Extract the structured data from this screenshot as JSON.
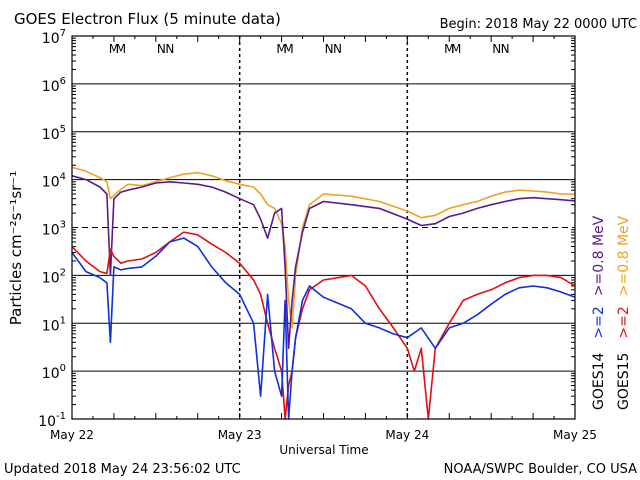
{
  "header": {
    "title": "GOES Electron Flux (5 minute data)",
    "begin": "Begin: 2018 May 22 0000 UTC"
  },
  "footer": {
    "updated": "Updated 2018 May 24 23:56:02 UTC",
    "credit": "NOAA/SWPC Boulder, CO USA"
  },
  "axes": {
    "xlabel": "Universal Time",
    "ylabel": "Particles cm⁻²s⁻¹sr⁻¹",
    "xticks": [
      "May 22",
      "May 23",
      "May 24",
      "May 25"
    ],
    "ytick_exponents": [
      "-1",
      "0",
      "1",
      "2",
      "3",
      "4",
      "5",
      "6",
      "7"
    ]
  },
  "markers": {
    "M": "M",
    "N": "N"
  },
  "legend": {
    "goes14": "GOES14",
    "goes15": "GOES15",
    "g14_2": ">=2",
    "g14_08": ">=0.8 MeV",
    "g15_2": ">=2",
    "g15_08": ">=0.8 MeV"
  },
  "colors": {
    "g14_08": "#5a1a8c",
    "g15_08": "#f0a21e",
    "g14_2": "#1030e0",
    "g15_2": "#e01010"
  },
  "chart_data": {
    "type": "line",
    "title": "GOES Electron Flux (5 minute data)",
    "xlabel": "Universal Time",
    "ylabel": "Particles cm-2 s-1 sr-1",
    "y_scale": "log",
    "ylim": [
      0.1,
      10000000
    ],
    "xlim": [
      "2018-05-22 00:00",
      "2018-05-25 00:00"
    ],
    "x_unit": "hours since 2018-05-22 00:00 UTC",
    "threshold_dashed": 1000,
    "legend_position": "right",
    "series": [
      {
        "name": "GOES15 >=0.8 MeV",
        "key": "g15_08",
        "x": [
          0,
          2,
          4,
          5,
          5.5,
          6.5,
          8,
          10,
          12,
          14,
          16,
          18,
          20,
          22,
          24,
          26,
          27,
          28,
          29,
          30,
          30.5,
          31,
          31.5,
          32,
          33,
          34,
          36,
          40,
          44,
          48,
          50,
          52,
          54,
          56,
          58,
          60,
          62,
          64,
          66,
          68,
          70,
          72
        ],
        "y": [
          18000,
          15000,
          11000,
          9000,
          4000,
          5500,
          8000,
          7500,
          9000,
          11000,
          13000,
          14000,
          12000,
          9500,
          8000,
          7000,
          5000,
          3000,
          2500,
          1200,
          400,
          30,
          8,
          100,
          1000,
          3000,
          5000,
          4500,
          3500,
          2200,
          1600,
          1800,
          2500,
          3000,
          3500,
          4500,
          5500,
          6000,
          5800,
          5500,
          5000,
          5000
        ]
      },
      {
        "name": "GOES14 >=0.8 MeV",
        "key": "g14_08",
        "x": [
          0,
          2,
          4,
          5,
          5.5,
          6,
          7,
          8,
          10,
          12,
          14,
          16,
          18,
          20,
          22,
          24,
          26,
          27,
          28,
          29,
          30,
          30.5,
          31,
          31.5,
          32,
          33,
          34,
          36,
          40,
          44,
          48,
          50,
          52,
          54,
          56,
          58,
          60,
          62,
          64,
          66,
          68,
          70,
          72
        ],
        "y": [
          12000,
          10000,
          7000,
          5000,
          100,
          4000,
          5500,
          6000,
          7000,
          8500,
          9000,
          8500,
          8000,
          7000,
          5500,
          4000,
          3000,
          1500,
          600,
          2000,
          2500,
          150,
          3,
          30,
          150,
          800,
          2500,
          3500,
          3000,
          2500,
          1500,
          1100,
          1200,
          1700,
          2000,
          2500,
          3000,
          3500,
          4000,
          4200,
          4000,
          3800,
          3600
        ]
      },
      {
        "name": "GOES15 >=2 MeV",
        "key": "g15_2",
        "x": [
          0,
          2,
          4,
          5,
          5.5,
          6,
          7,
          8,
          10,
          12,
          14,
          16,
          18,
          20,
          22,
          24,
          26,
          27,
          28,
          29,
          30,
          30.5,
          31,
          31.5,
          32,
          33,
          34,
          36,
          40,
          42,
          44,
          46,
          48,
          49,
          50,
          51,
          52,
          54,
          56,
          58,
          60,
          62,
          64,
          66,
          68,
          70,
          72
        ],
        "y": [
          400,
          200,
          120,
          110,
          350,
          250,
          180,
          200,
          220,
          300,
          500,
          800,
          700,
          450,
          300,
          180,
          80,
          40,
          10,
          3,
          1,
          0.1,
          0.5,
          1,
          5,
          20,
          50,
          80,
          100,
          60,
          20,
          8,
          3,
          1,
          3,
          0.1,
          3,
          10,
          30,
          40,
          50,
          70,
          90,
          100,
          100,
          90,
          60
        ]
      },
      {
        "name": "GOES14 >=2 MeV",
        "key": "g14_2",
        "x": [
          0,
          2,
          4,
          5,
          5.5,
          6,
          7,
          8,
          10,
          12,
          14,
          16,
          18,
          20,
          22,
          24,
          26,
          27,
          28,
          29,
          30,
          30.5,
          31,
          31.5,
          32,
          33,
          34,
          36,
          40,
          42,
          44,
          46,
          48,
          50,
          52,
          54,
          56,
          58,
          60,
          62,
          64,
          66,
          68,
          70,
          72
        ],
        "y": [
          300,
          120,
          90,
          70,
          4,
          150,
          130,
          140,
          150,
          250,
          500,
          600,
          400,
          150,
          70,
          40,
          10,
          0.3,
          40,
          1,
          0.3,
          30,
          0.1,
          1,
          5,
          30,
          60,
          35,
          20,
          10,
          8,
          6,
          5,
          8,
          3,
          8,
          10,
          15,
          25,
          40,
          55,
          60,
          55,
          45,
          35
        ]
      }
    ]
  }
}
